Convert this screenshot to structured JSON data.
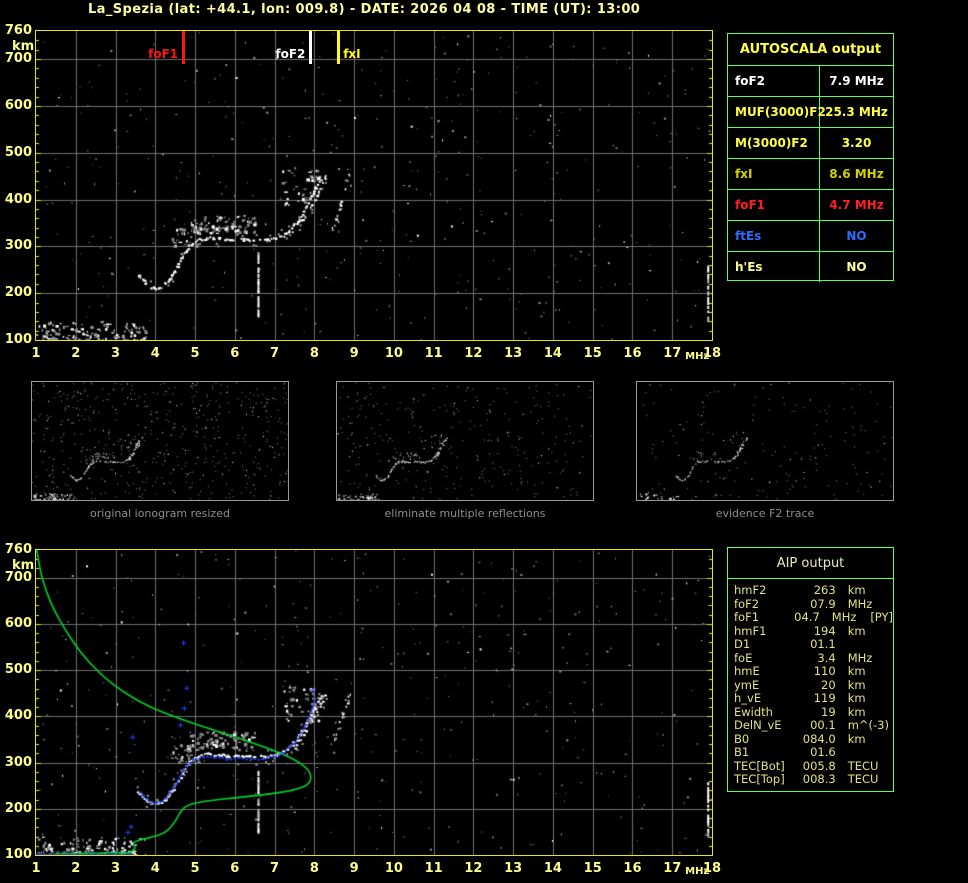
{
  "title": "La_Spezia (lat: +44.1, lon: 009.8) - DATE: 2026 04 08 - TIME (UT): 13:00",
  "colors": {
    "title_text": "#ffffa0",
    "axis_text": "#ffff8c",
    "plot_border": "#e8e800",
    "grid": "#6f6f6f",
    "table_border": "#58ff58",
    "green_profile": "#00d22d",
    "blue_trace": "#2244ff",
    "caption_gray": "#8f8f8f"
  },
  "autoscala_table": {
    "title": "AUTOSCALA output",
    "rows": [
      {
        "label": "foF2",
        "value": "7.9 MHz",
        "color": "#ffffff"
      },
      {
        "label": "MUF(3000)F2",
        "value": "25.3 MHz",
        "color": "#ffff44"
      },
      {
        "label": "M(3000)F2",
        "value": "3.20",
        "color": "#ffff44"
      },
      {
        "label": "fxI",
        "value": "8.6 MHz",
        "color": "#d2d200"
      },
      {
        "label": "foF1",
        "value": "4.7 MHz",
        "color": "#ff2020"
      },
      {
        "label": "ftEs",
        "value": "NO",
        "color": "#2a6eff"
      },
      {
        "label": "h'Es",
        "value": "NO",
        "color": "#ffff99"
      }
    ]
  },
  "aip_table": {
    "title": "AIP output",
    "rows": [
      {
        "label": "hmF2",
        "value": "263",
        "unit": "km",
        "extra": ""
      },
      {
        "label": "foF2",
        "value": "07.9",
        "unit": "MHz",
        "extra": ""
      },
      {
        "label": "foF1",
        "value": "04.7",
        "unit": "MHz",
        "extra": "[PY]"
      },
      {
        "label": "hmF1",
        "value": "194",
        "unit": "km",
        "extra": ""
      },
      {
        "label": "D1",
        "value": "01.1",
        "unit": "",
        "extra": ""
      },
      {
        "label": "foE",
        "value": "3.4",
        "unit": "MHz",
        "extra": ""
      },
      {
        "label": "hmE",
        "value": "110",
        "unit": "km",
        "extra": ""
      },
      {
        "label": "ymE",
        "value": "20",
        "unit": "km",
        "extra": ""
      },
      {
        "label": "h_vE",
        "value": "119",
        "unit": "km",
        "extra": ""
      },
      {
        "label": "Ewidth",
        "value": "19",
        "unit": "km",
        "extra": ""
      },
      {
        "label": "DelN_vE",
        "value": "00.1",
        "unit": "m^(-3)",
        "extra": ""
      },
      {
        "label": "B0",
        "value": "084.0",
        "unit": "km",
        "extra": ""
      },
      {
        "label": "B1",
        "value": "01.6",
        "unit": "",
        "extra": ""
      },
      {
        "label": "TEC[Bot]",
        "value": "005.8",
        "unit": "TECU",
        "extra": ""
      },
      {
        "label": "TEC[Top]",
        "value": "008.3",
        "unit": "TECU",
        "extra": ""
      }
    ]
  },
  "thumbnails": [
    {
      "caption": "original ionogram resized"
    },
    {
      "caption": "eliminate multiple reflections"
    },
    {
      "caption": "evidence F2 trace"
    }
  ],
  "chart_data": [
    {
      "name": "top_ionogram",
      "type": "scatter",
      "xlabel": "MHz",
      "ylabel": "km",
      "xlim": [
        1,
        18
      ],
      "ylim": [
        100,
        760
      ],
      "x_ticks": [
        1,
        2,
        3,
        4,
        5,
        6,
        7,
        8,
        9,
        10,
        11,
        12,
        13,
        14,
        15,
        16,
        17,
        18
      ],
      "y_ticks": [
        760,
        700,
        600,
        500,
        400,
        300,
        200,
        100
      ],
      "grid_v_mhz": [
        2,
        3,
        4,
        5,
        6,
        7,
        8,
        9,
        10,
        11,
        12,
        13,
        14,
        15,
        16,
        17
      ],
      "grid_h_km": [
        200,
        300,
        400,
        500,
        600,
        700
      ],
      "markers": [
        {
          "label": "foF1",
          "f": 4.7,
          "color": "#ff1414",
          "side": "left"
        },
        {
          "label": "foF2",
          "f": 7.9,
          "color": "#ffffff",
          "side": "left"
        },
        {
          "label": "fxI",
          "f": 8.6,
          "color": "#ffff00",
          "side": "right"
        }
      ],
      "e_region": {
        "f_range": [
          1.0,
          3.75
        ],
        "h_range": [
          100,
          138
        ]
      },
      "trace_points": [
        [
          3.55,
          240
        ],
        [
          3.75,
          222
        ],
        [
          3.95,
          212
        ],
        [
          4.1,
          214
        ],
        [
          4.25,
          224
        ],
        [
          4.4,
          240
        ],
        [
          4.55,
          262
        ],
        [
          4.7,
          287
        ],
        [
          4.85,
          303
        ],
        [
          5.05,
          315
        ],
        [
          5.3,
          320
        ],
        [
          5.6,
          318
        ],
        [
          5.9,
          315
        ],
        [
          6.2,
          316
        ],
        [
          6.5,
          314
        ],
        [
          6.8,
          315
        ],
        [
          7.0,
          318
        ],
        [
          7.2,
          324
        ],
        [
          7.35,
          334
        ],
        [
          7.5,
          348
        ],
        [
          7.65,
          366
        ],
        [
          7.8,
          390
        ],
        [
          7.95,
          416
        ],
        [
          8.05,
          432
        ],
        [
          8.15,
          446
        ]
      ],
      "second_branch": [
        [
          7.45,
          330
        ],
        [
          7.65,
          352
        ],
        [
          7.85,
          380
        ],
        [
          8.05,
          410
        ],
        [
          8.2,
          436
        ],
        [
          8.3,
          458
        ]
      ],
      "third_branch": [
        [
          8.45,
          340
        ],
        [
          8.55,
          365
        ],
        [
          8.65,
          395
        ],
        [
          8.78,
          425
        ],
        [
          8.9,
          455
        ]
      ],
      "echo_clusters": [
        {
          "f": [
            4.85,
            6.5
          ],
          "h": [
            328,
            368
          ],
          "n": 95
        },
        {
          "f": [
            7.15,
            8.1
          ],
          "h": [
            390,
            470
          ],
          "n": 40
        },
        {
          "f": [
            4.4,
            5.1
          ],
          "h": [
            300,
            340
          ],
          "n": 30
        }
      ],
      "streaks": [
        {
          "f": 6.57,
          "h1": 155,
          "h2": 290
        },
        {
          "f": 17.88,
          "h1": 150,
          "h2": 260
        }
      ]
    },
    {
      "name": "bottom_ionogram",
      "type": "scatter+profile",
      "xlabel": "MHz",
      "ylabel": "km",
      "xlim": [
        1,
        18
      ],
      "ylim": [
        100,
        760
      ],
      "x_ticks": [
        1,
        2,
        3,
        4,
        5,
        6,
        7,
        8,
        9,
        10,
        11,
        12,
        13,
        14,
        15,
        16,
        17,
        18
      ],
      "y_ticks": [
        760,
        700,
        600,
        500,
        400,
        300,
        200,
        100
      ],
      "grid_v_mhz": [
        2,
        3,
        4,
        5,
        6,
        7,
        8,
        9,
        10,
        11,
        12,
        13,
        14,
        15,
        16,
        17
      ],
      "grid_h_km": [
        200,
        300,
        400,
        500,
        600,
        700
      ],
      "e_region": {
        "f_range": [
          1.0,
          3.75
        ],
        "h_range": [
          100,
          138
        ]
      },
      "trace_points": [
        [
          3.55,
          240
        ],
        [
          3.75,
          222
        ],
        [
          3.95,
          212
        ],
        [
          4.1,
          214
        ],
        [
          4.25,
          224
        ],
        [
          4.4,
          240
        ],
        [
          4.55,
          262
        ],
        [
          4.7,
          287
        ],
        [
          4.85,
          303
        ],
        [
          5.05,
          315
        ],
        [
          5.3,
          320
        ],
        [
          5.6,
          318
        ],
        [
          5.9,
          315
        ],
        [
          6.2,
          316
        ],
        [
          6.5,
          314
        ],
        [
          6.8,
          315
        ],
        [
          7.0,
          318
        ],
        [
          7.2,
          324
        ],
        [
          7.35,
          334
        ],
        [
          7.5,
          348
        ],
        [
          7.65,
          366
        ],
        [
          7.8,
          390
        ],
        [
          7.95,
          416
        ],
        [
          8.05,
          432
        ],
        [
          8.15,
          446
        ]
      ],
      "second_branch": [
        [
          7.45,
          330
        ],
        [
          7.65,
          352
        ],
        [
          7.85,
          380
        ],
        [
          8.05,
          410
        ],
        [
          8.2,
          436
        ],
        [
          8.3,
          458
        ]
      ],
      "third_branch": [
        [
          8.45,
          340
        ],
        [
          8.55,
          365
        ],
        [
          8.65,
          395
        ],
        [
          8.78,
          425
        ],
        [
          8.9,
          455
        ]
      ],
      "echo_clusters": [
        {
          "f": [
            4.85,
            6.5
          ],
          "h": [
            328,
            368
          ],
          "n": 95
        },
        {
          "f": [
            7.15,
            8.1
          ],
          "h": [
            390,
            470
          ],
          "n": 40
        },
        {
          "f": [
            4.4,
            5.1
          ],
          "h": [
            300,
            340
          ],
          "n": 30
        }
      ],
      "streaks": [
        {
          "f": 6.57,
          "h1": 155,
          "h2": 290
        },
        {
          "f": 17.88,
          "h1": 150,
          "h2": 260
        }
      ],
      "profile_points": [
        [
          1.02,
          760
        ],
        [
          1.1,
          716
        ],
        [
          1.25,
          672
        ],
        [
          1.45,
          630
        ],
        [
          1.75,
          585
        ],
        [
          2.1,
          540
        ],
        [
          2.6,
          492
        ],
        [
          3.2,
          452
        ],
        [
          3.9,
          418
        ],
        [
          4.7,
          392
        ],
        [
          5.5,
          370
        ],
        [
          6.3,
          347
        ],
        [
          7.0,
          326
        ],
        [
          7.55,
          305
        ],
        [
          7.85,
          285
        ],
        [
          7.93,
          268
        ],
        [
          7.85,
          252
        ],
        [
          7.5,
          240
        ],
        [
          6.8,
          231
        ],
        [
          6.0,
          224
        ],
        [
          5.2,
          216
        ],
        [
          4.8,
          208
        ],
        [
          4.65,
          196
        ],
        [
          4.55,
          180
        ],
        [
          4.4,
          160
        ],
        [
          4.2,
          146
        ],
        [
          3.9,
          138
        ],
        [
          3.6,
          133
        ],
        [
          3.42,
          126
        ],
        [
          3.5,
          117
        ],
        [
          3.44,
          108
        ],
        [
          3.28,
          104
        ],
        [
          3.0,
          106
        ],
        [
          2.6,
          104
        ],
        [
          2.0,
          103
        ],
        [
          1.5,
          103
        ]
      ],
      "autoscaled_trace": [
        [
          3.6,
          238
        ],
        [
          3.7,
          228
        ],
        [
          3.8,
          220
        ],
        [
          3.95,
          213
        ],
        [
          4.1,
          215
        ],
        [
          4.25,
          225
        ],
        [
          4.4,
          242
        ],
        [
          4.55,
          264
        ],
        [
          4.7,
          288
        ],
        [
          4.85,
          302
        ],
        [
          5.0,
          310
        ],
        [
          5.2,
          315
        ],
        [
          5.5,
          313
        ],
        [
          5.8,
          310
        ],
        [
          6.1,
          311
        ],
        [
          6.4,
          309
        ],
        [
          6.7,
          311
        ],
        [
          7.0,
          315
        ],
        [
          7.2,
          322
        ],
        [
          7.35,
          333
        ],
        [
          7.5,
          347
        ],
        [
          7.65,
          365
        ],
        [
          7.8,
          390
        ],
        [
          7.9,
          412
        ],
        [
          7.98,
          432
        ],
        [
          8.02,
          446
        ]
      ],
      "autoscaled_e_line": {
        "f_range": [
          1.0,
          3.45
        ],
        "h": 102
      },
      "isolated_blue_points": [
        [
          4.7,
          560
        ],
        [
          4.78,
          462
        ],
        [
          4.72,
          418
        ],
        [
          4.62,
          382
        ],
        [
          3.42,
          356
        ],
        [
          7.95,
          458
        ],
        [
          3.3,
          150
        ],
        [
          3.38,
          162
        ]
      ]
    }
  ]
}
